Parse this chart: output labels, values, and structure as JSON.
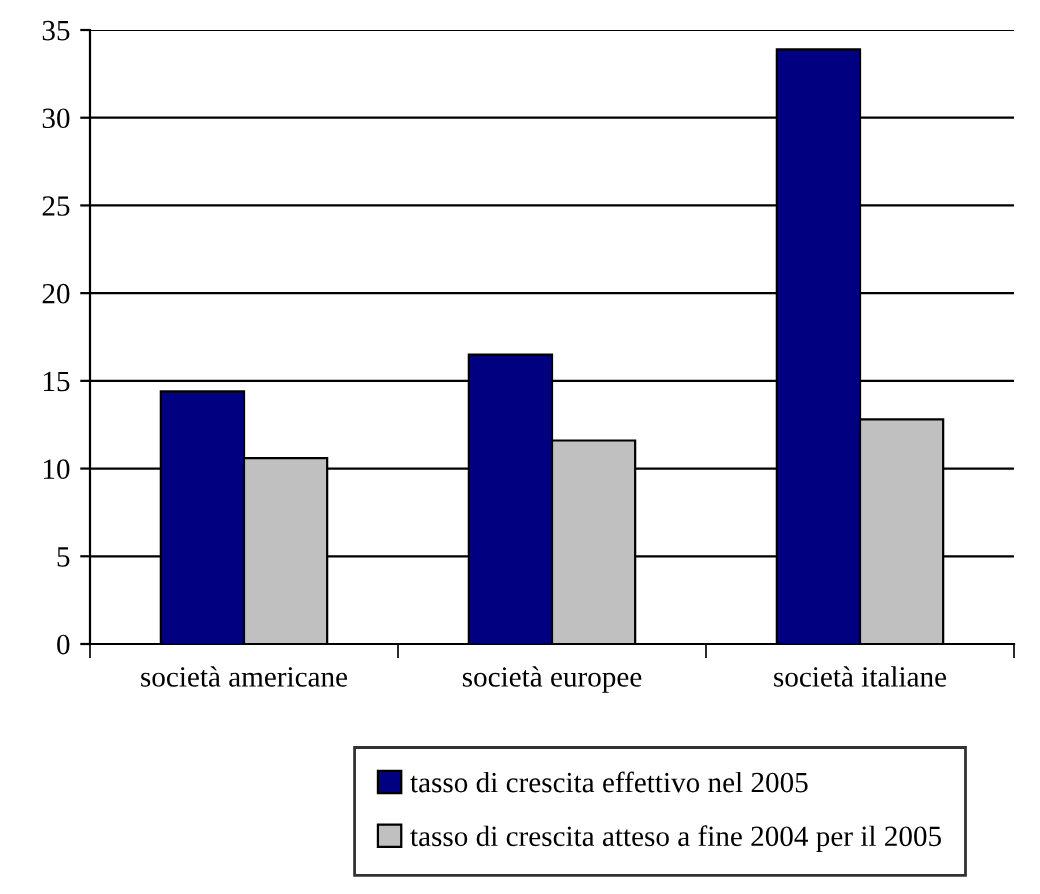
{
  "chart_data": {
    "type": "bar",
    "categories": [
      "società americane",
      "società europee",
      "società italiane"
    ],
    "series": [
      {
        "name": "tasso di crescita effettivo nel 2005",
        "color": "#000080",
        "values": [
          14.4,
          16.5,
          33.9
        ]
      },
      {
        "name": "tasso di crescita atteso a fine 2004 per il 2005",
        "color": "#c0c0c0",
        "values": [
          10.6,
          11.6,
          12.8
        ]
      }
    ],
    "ylim": [
      0,
      35
    ],
    "yticks": [
      0,
      5,
      10,
      15,
      20,
      25,
      30,
      35
    ],
    "grid": "y",
    "legend": "bottom"
  }
}
